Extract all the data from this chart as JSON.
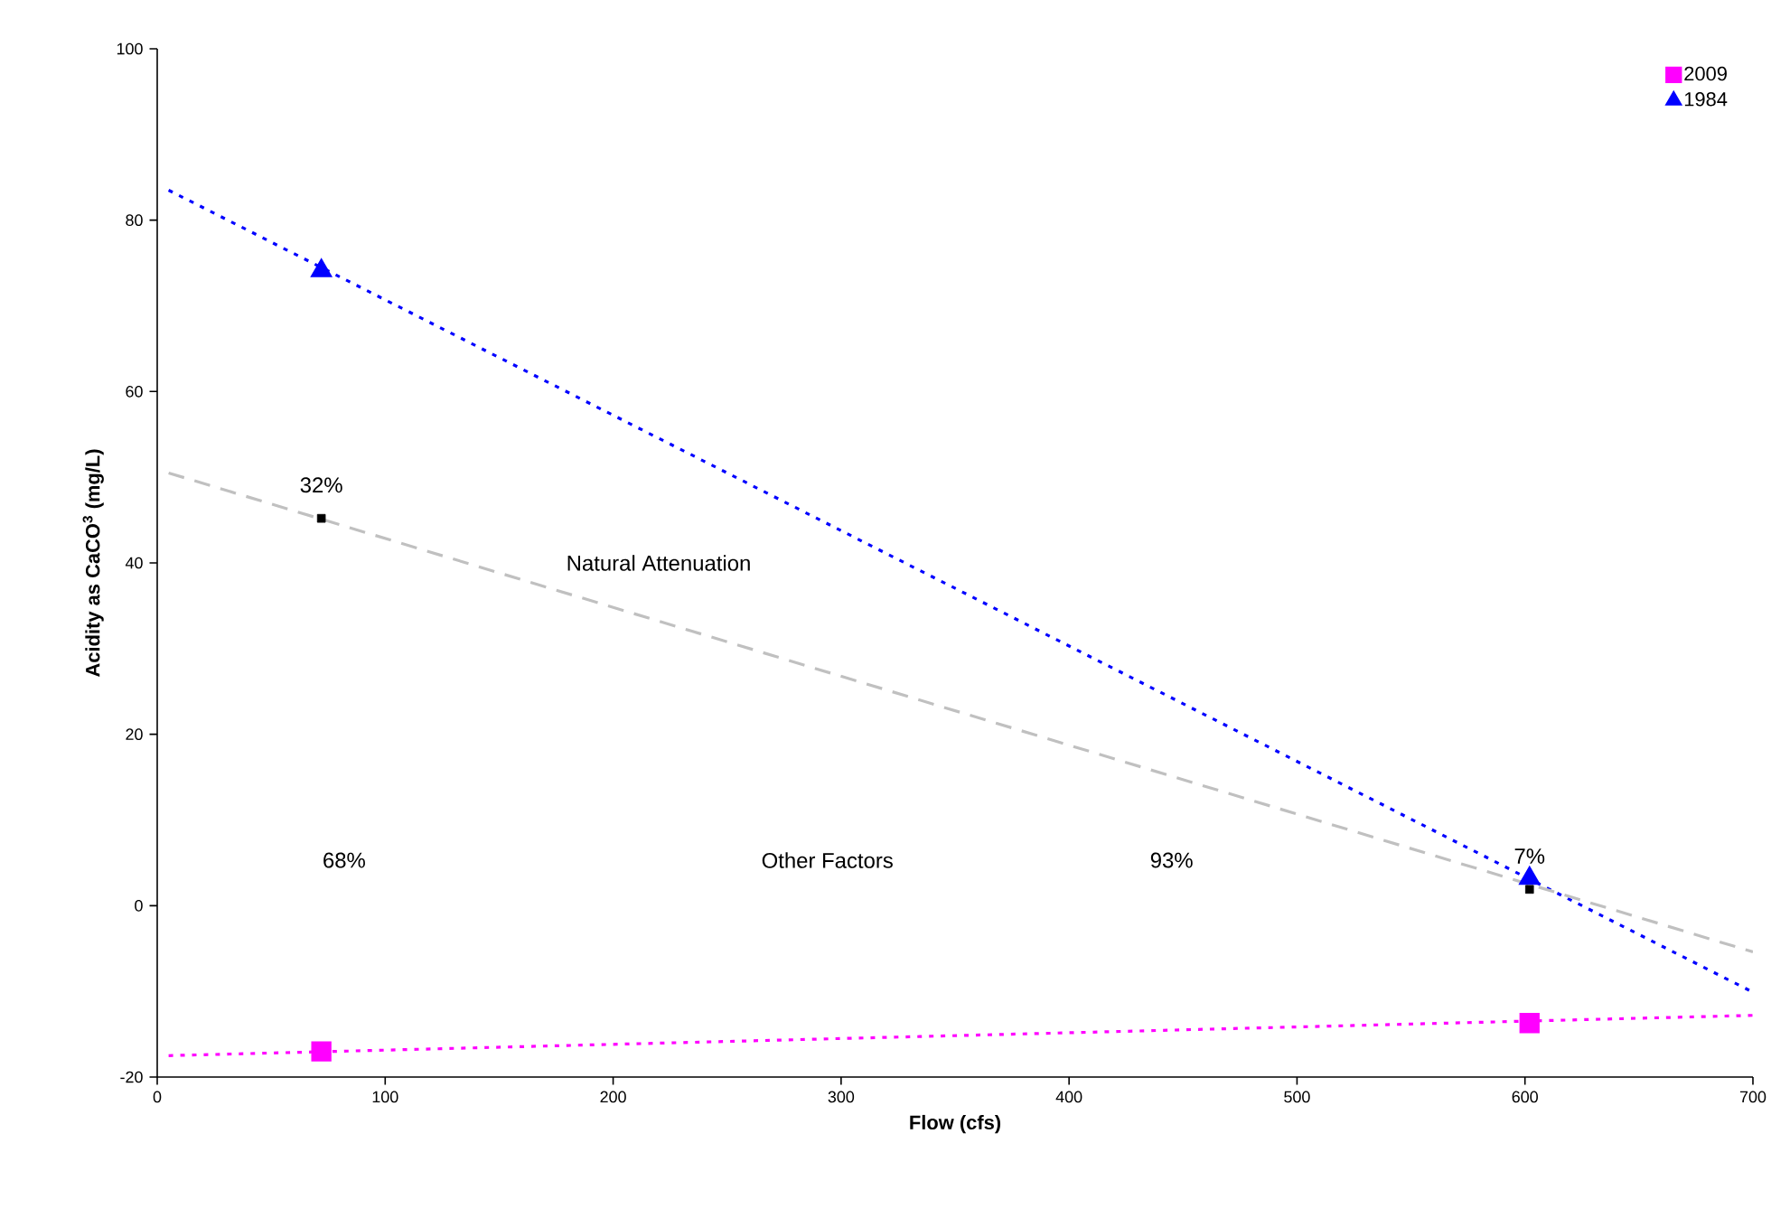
{
  "chart_data": {
    "type": "scatter",
    "xlabel": "Flow (cfs)",
    "ylabel": "Acidity as CaCO$^{3}$ (mg/L)",
    "xlim": [
      0,
      700
    ],
    "ylim": [
      -20,
      100
    ],
    "xticks": [
      0,
      100,
      200,
      300,
      400,
      500,
      600,
      700
    ],
    "yticks": [
      -20,
      0,
      20,
      40,
      60,
      80,
      100
    ],
    "grid": false,
    "legend": "top right",
    "series": [
      {
        "name": "2009",
        "color": "#ff00ff",
        "marker": "square",
        "x": [
          72,
          602
        ],
        "values": [
          -17.0,
          -13.7
        ]
      },
      {
        "name": "1984",
        "color": "#0000ff",
        "marker": "triangle",
        "x": [
          72,
          602
        ],
        "values": [
          74.1,
          3.2
        ]
      },
      {
        "color": "#000000",
        "marker": "square",
        "x": [
          72,
          602
        ],
        "values": [
          45.2,
          1.9
        ]
      },
      {
        "type": "line",
        "color": "#ff00ff",
        "line_style": "dotted",
        "marker": "none",
        "x": [
          5,
          700
        ],
        "values": [
          -17.5,
          -12.8
        ]
      },
      {
        "type": "line",
        "color": "#0000ff",
        "line_style": "dotted",
        "marker": "none",
        "x": [
          5,
          700
        ],
        "values": [
          83.5,
          -10.1
        ]
      },
      {
        "type": "line",
        "color": "#c0c0c0",
        "line_style": "dashed",
        "marker": "none",
        "x": [
          5,
          700
        ],
        "values": [
          50.5,
          -5.4
        ]
      }
    ],
    "annotations": [
      {
        "text": "32%",
        "x": 72,
        "y": 45.2
      },
      "Natural Attenuation",
      "68%",
      "Other Factors",
      "93%",
      {
        "text": "7%",
        "x": 602,
        "y": 1.9
      }
    ]
  }
}
